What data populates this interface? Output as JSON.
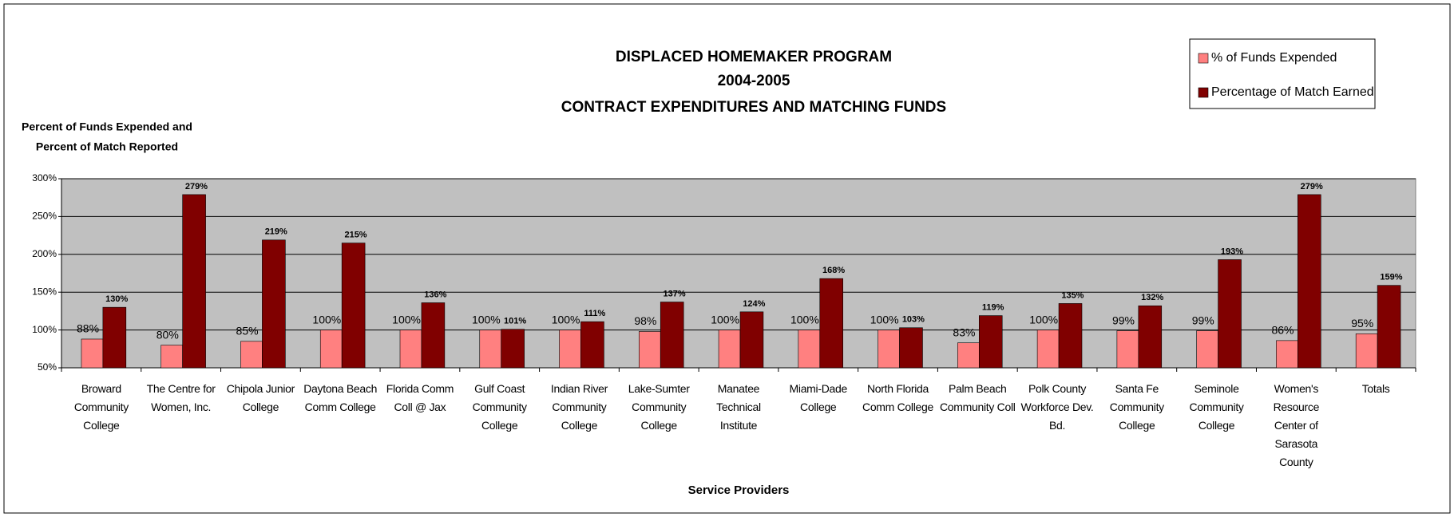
{
  "chart_data": {
    "type": "bar",
    "title": "DISPLACED HOMEMAKER PROGRAM",
    "subtitle": [
      "2004-2005",
      "CONTRACT EXPENDITURES AND MATCHING FUNDS"
    ],
    "ylabel": [
      "Percent of Funds Expended and",
      "Percent of Match Reported"
    ],
    "xlabel": "Service Providers",
    "categories": [
      "Broward Community College",
      "The Centre for Women, Inc.",
      "Chipola Junior College",
      "Daytona Beach Comm College",
      "Florida Comm Coll @ Jax",
      "Gulf Coast Community College",
      "Indian River Community College",
      "Lake-Sumter Community College",
      "Manatee Technical Institute",
      "Miami-Dade College",
      "North Florida Comm College",
      "Palm Beach Community Coll",
      "Polk County Workforce Dev. Bd.",
      "Santa Fe Community College",
      "Seminole Community College",
      "Women's Resource Center of Sarasota County",
      "Totals"
    ],
    "series": [
      {
        "name": "% of Funds Expended",
        "color": "#ff8080",
        "values": [
          88,
          80,
          85,
          100,
          100,
          100,
          100,
          98,
          100,
          100,
          100,
          83,
          100,
          99,
          99,
          86,
          95
        ],
        "value_labels": [
          "88%",
          "80%",
          "85%",
          "100%",
          "100%",
          "100%",
          "100%",
          "98%",
          "100%",
          "100%",
          "100%",
          "83%",
          "100%",
          "99%",
          "99%",
          "86%",
          "95%"
        ]
      },
      {
        "name": "Percentage of Match Earned",
        "color": "#800000",
        "values": [
          130,
          279,
          219,
          215,
          136,
          101,
          111,
          137,
          124,
          168,
          103,
          119,
          135,
          132,
          193,
          279,
          159
        ],
        "value_labels": [
          "130%",
          "279%",
          "219%",
          "215%",
          "136%",
          "101%",
          "111%",
          "137%",
          "124%",
          "168%",
          "103%",
          "119%",
          "135%",
          "132%",
          "193%",
          "279%",
          "159%"
        ]
      }
    ],
    "ylim": [
      50,
      300
    ],
    "yticks": [
      {
        "value": 50,
        "label": "50%"
      },
      {
        "value": 100,
        "label": "100%"
      },
      {
        "value": 150,
        "label": "150%"
      },
      {
        "value": 200,
        "label": "200%"
      },
      {
        "value": 250,
        "label": "250%"
      },
      {
        "value": 300,
        "label": "300%"
      }
    ],
    "grid": true,
    "legend": "top-right"
  }
}
